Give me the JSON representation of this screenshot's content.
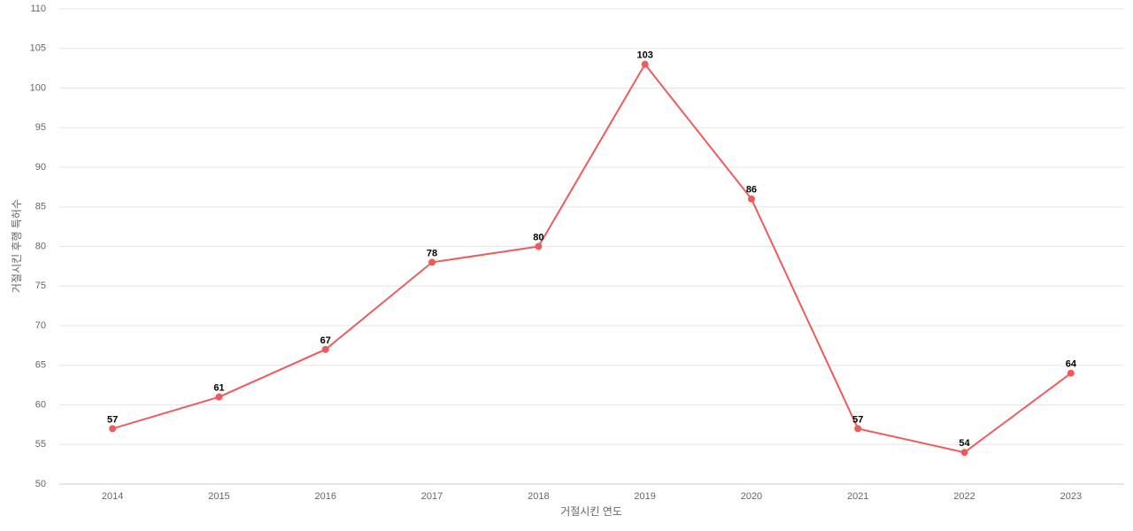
{
  "chart_data": {
    "type": "line",
    "x_label": "거절시킨 연도",
    "y_label": "거절시킨 후행 특허수",
    "categories": [
      "2014",
      "2015",
      "2016",
      "2017",
      "2018",
      "2019",
      "2020",
      "2021",
      "2022",
      "2023"
    ],
    "series": [
      {
        "color": "#ef5b5b",
        "values": [
          57,
          61,
          67,
          78,
          80,
          103,
          86,
          57,
          54,
          64
        ]
      }
    ],
    "ylim": [
      50,
      110
    ],
    "yticks": [
      50,
      55,
      60,
      65,
      70,
      75,
      80,
      85,
      90,
      95,
      100,
      105,
      110
    ],
    "grid": true
  }
}
